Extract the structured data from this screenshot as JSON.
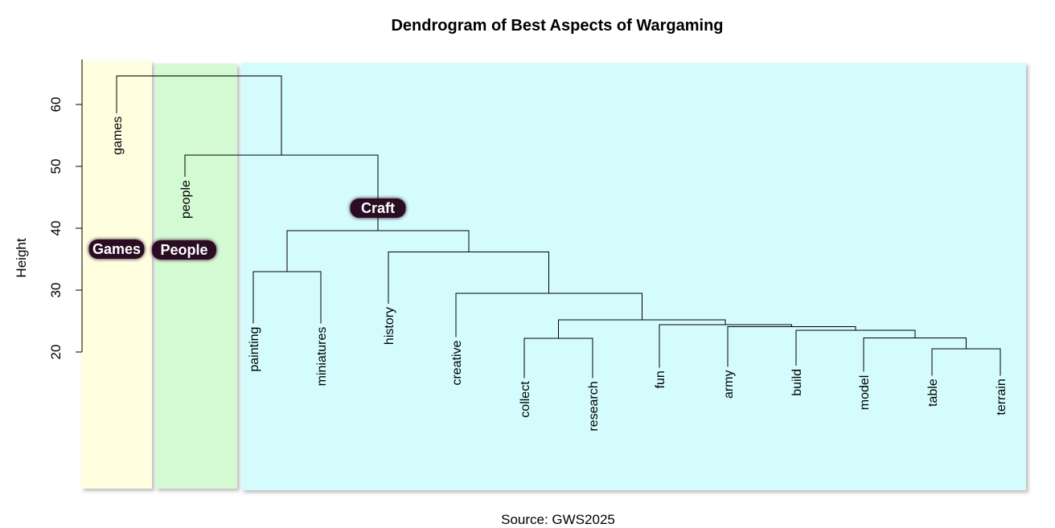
{
  "chart_data": {
    "type": "dendrogram",
    "title": "Dendrogram of Best Aspects of Wargaming",
    "ylabel": "Height",
    "caption": "Source: GWS2025",
    "y_ticks": [
      20,
      30,
      40,
      50,
      60
    ],
    "ylim": [
      0,
      67
    ],
    "leaves": [
      "games",
      "people",
      "painting",
      "miniatures",
      "history",
      "creative",
      "collect",
      "research",
      "fun",
      "army",
      "build",
      "model",
      "table",
      "terrain"
    ],
    "merges": [
      {
        "children": [
          "table",
          "terrain"
        ],
        "height": 20.5
      },
      {
        "children": [
          "model",
          "table+terrain"
        ],
        "height": 22.3
      },
      {
        "children": [
          "collect",
          "research"
        ],
        "height": 22.2
      },
      {
        "children": [
          "build",
          "model-table-terrain"
        ],
        "height": 23.5
      },
      {
        "children": [
          "army",
          "build-model-table-terrain"
        ],
        "height": 24.1
      },
      {
        "children": [
          "fun",
          "army-build-model-table-terrain"
        ],
        "height": 24.4
      },
      {
        "children": [
          "collect-research",
          "fun-army-build-model-table-terrain"
        ],
        "height": 25.2
      },
      {
        "children": [
          "creative",
          "collect...terrain"
        ],
        "height": 29.5
      },
      {
        "children": [
          "painting",
          "miniatures"
        ],
        "height": 33.0
      },
      {
        "children": [
          "history",
          "creative...terrain"
        ],
        "height": 36.2
      },
      {
        "children": [
          "painting-miniatures",
          "history...terrain"
        ],
        "height": 39.6
      },
      {
        "children": [
          "people",
          "craft cluster"
        ],
        "height": 51.8
      },
      {
        "children": [
          "games",
          "people...terrain"
        ],
        "height": 64.6
      }
    ],
    "leaf_heights": {
      "games": 58.6,
      "people": 48.3,
      "painting": 24.6,
      "miniatures": 24.6,
      "history": 27.8,
      "creative": 22.4,
      "collect": 15.8,
      "research": 15.8,
      "fun": 17.5,
      "army": 17.6,
      "build": 17.8,
      "model": 16.8,
      "table": 16.2,
      "terrain": 16.2
    },
    "clusters": [
      {
        "label": "Games",
        "leaves": [
          "games"
        ],
        "color": "#ffffe0"
      },
      {
        "label": "People",
        "leaves": [
          "people"
        ],
        "color": "#d4fad4"
      },
      {
        "label": "Craft",
        "leaves": [
          "painting",
          "miniatures",
          "history",
          "creative",
          "collect",
          "research",
          "fun",
          "army",
          "build",
          "model",
          "table",
          "terrain"
        ],
        "color": "#d4fcfc"
      }
    ],
    "label_badge_color": "#2a0a24"
  }
}
